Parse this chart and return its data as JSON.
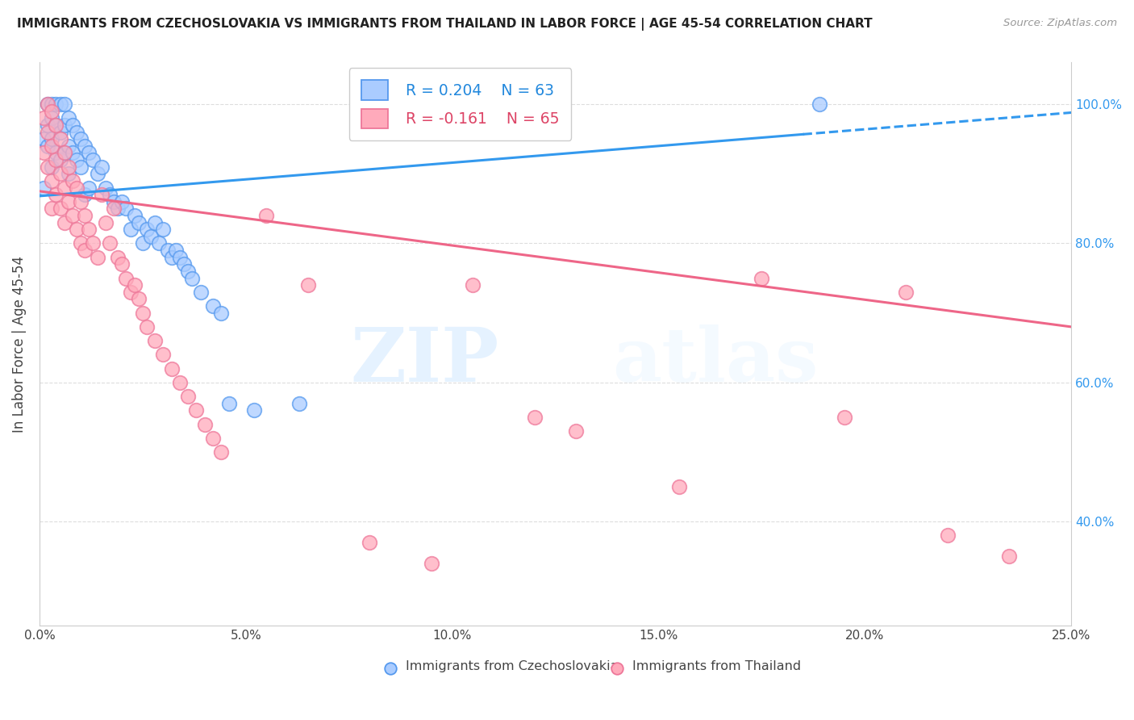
{
  "title": "IMMIGRANTS FROM CZECHOSLOVAKIA VS IMMIGRANTS FROM THAILAND IN LABOR FORCE | AGE 45-54 CORRELATION CHART",
  "source": "Source: ZipAtlas.com",
  "ylabel": "In Labor Force | Age 45-54",
  "xlim": [
    0.0,
    0.25
  ],
  "ylim": [
    0.25,
    1.06
  ],
  "xtick_labels": [
    "0.0%",
    "5.0%",
    "10.0%",
    "15.0%",
    "20.0%",
    "25.0%"
  ],
  "xtick_values": [
    0.0,
    0.05,
    0.1,
    0.15,
    0.2,
    0.25
  ],
  "ytick_labels": [
    "40.0%",
    "60.0%",
    "80.0%",
    "100.0%"
  ],
  "ytick_values": [
    0.4,
    0.6,
    0.8,
    1.0
  ],
  "legend_r_blue": "R = 0.204",
  "legend_n_blue": "N = 63",
  "legend_r_pink": "R = -0.161",
  "legend_n_pink": "N = 65",
  "legend_label_blue": "Immigrants from Czechoslovakia",
  "legend_label_pink": "Immigrants from Thailand",
  "blue_line_color": "#3399EE",
  "pink_line_color": "#EE6688",
  "watermark_zip": "ZIP",
  "watermark_atlas": "atlas",
  "blue_trend_x": [
    0.0,
    0.25
  ],
  "blue_trend_y": [
    0.868,
    0.988
  ],
  "blue_trend_dash_start": 0.185,
  "pink_trend_x": [
    0.0,
    0.25
  ],
  "pink_trend_y": [
    0.875,
    0.68
  ],
  "blue_scatter_x": [
    0.001,
    0.001,
    0.002,
    0.002,
    0.002,
    0.003,
    0.003,
    0.003,
    0.003,
    0.004,
    0.004,
    0.004,
    0.005,
    0.005,
    0.005,
    0.006,
    0.006,
    0.006,
    0.007,
    0.007,
    0.007,
    0.008,
    0.008,
    0.009,
    0.009,
    0.01,
    0.01,
    0.011,
    0.011,
    0.012,
    0.012,
    0.013,
    0.014,
    0.015,
    0.016,
    0.017,
    0.018,
    0.019,
    0.02,
    0.021,
    0.022,
    0.023,
    0.024,
    0.025,
    0.026,
    0.027,
    0.028,
    0.029,
    0.03,
    0.031,
    0.032,
    0.033,
    0.034,
    0.035,
    0.036,
    0.037,
    0.039,
    0.042,
    0.044,
    0.046,
    0.052,
    0.063,
    0.189
  ],
  "blue_scatter_y": [
    0.95,
    0.88,
    1.0,
    0.97,
    0.94,
    1.0,
    0.98,
    0.95,
    0.91,
    1.0,
    0.97,
    0.93,
    1.0,
    0.96,
    0.92,
    1.0,
    0.97,
    0.93,
    0.98,
    0.94,
    0.9,
    0.97,
    0.93,
    0.96,
    0.92,
    0.95,
    0.91,
    0.94,
    0.87,
    0.93,
    0.88,
    0.92,
    0.9,
    0.91,
    0.88,
    0.87,
    0.86,
    0.85,
    0.86,
    0.85,
    0.82,
    0.84,
    0.83,
    0.8,
    0.82,
    0.81,
    0.83,
    0.8,
    0.82,
    0.79,
    0.78,
    0.79,
    0.78,
    0.77,
    0.76,
    0.75,
    0.73,
    0.71,
    0.7,
    0.57,
    0.56,
    0.57,
    1.0
  ],
  "pink_scatter_x": [
    0.001,
    0.001,
    0.002,
    0.002,
    0.002,
    0.003,
    0.003,
    0.003,
    0.003,
    0.004,
    0.004,
    0.004,
    0.005,
    0.005,
    0.005,
    0.006,
    0.006,
    0.006,
    0.007,
    0.007,
    0.008,
    0.008,
    0.009,
    0.009,
    0.01,
    0.01,
    0.011,
    0.011,
    0.012,
    0.013,
    0.014,
    0.015,
    0.016,
    0.017,
    0.018,
    0.019,
    0.02,
    0.021,
    0.022,
    0.023,
    0.024,
    0.025,
    0.026,
    0.028,
    0.03,
    0.032,
    0.034,
    0.036,
    0.038,
    0.04,
    0.042,
    0.044,
    0.055,
    0.065,
    0.08,
    0.095,
    0.105,
    0.12,
    0.13,
    0.155,
    0.175,
    0.195,
    0.21,
    0.22,
    0.235
  ],
  "pink_scatter_y": [
    0.98,
    0.93,
    1.0,
    0.96,
    0.91,
    0.99,
    0.94,
    0.89,
    0.85,
    0.97,
    0.92,
    0.87,
    0.95,
    0.9,
    0.85,
    0.93,
    0.88,
    0.83,
    0.91,
    0.86,
    0.89,
    0.84,
    0.88,
    0.82,
    0.86,
    0.8,
    0.84,
    0.79,
    0.82,
    0.8,
    0.78,
    0.87,
    0.83,
    0.8,
    0.85,
    0.78,
    0.77,
    0.75,
    0.73,
    0.74,
    0.72,
    0.7,
    0.68,
    0.66,
    0.64,
    0.62,
    0.6,
    0.58,
    0.56,
    0.54,
    0.52,
    0.5,
    0.84,
    0.74,
    0.37,
    0.34,
    0.74,
    0.55,
    0.53,
    0.45,
    0.75,
    0.55,
    0.73,
    0.38,
    0.35
  ]
}
